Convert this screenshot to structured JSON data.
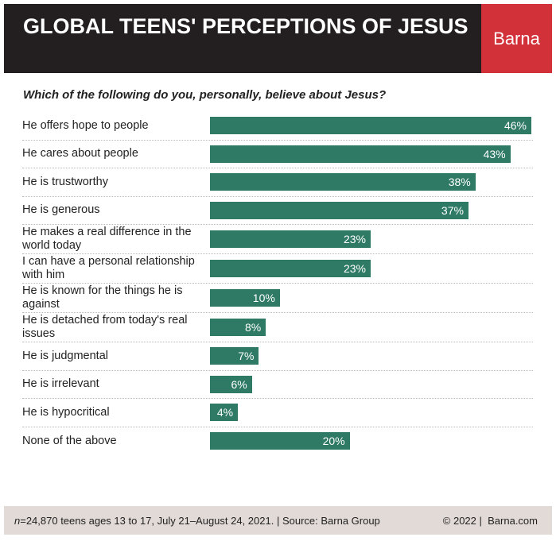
{
  "chart_data": {
    "type": "bar",
    "orientation": "horizontal",
    "title": "GLOBAL TEENS' PERCEPTIONS OF JESUS",
    "brand": "Barna",
    "subtitle": "Which of the following do you, personally, believe about Jesus?",
    "categories": [
      "He offers hope to people",
      "He cares about people",
      "He is trustworthy",
      "He is generous",
      "He makes a real difference in the world today",
      "I can have a personal relationship with him",
      "He is known for the things he is against",
      "He is detached from today's real issues",
      "He is judgmental",
      "He is irrelevant",
      "He is hypocritical",
      "None of the above"
    ],
    "values": [
      46,
      43,
      38,
      37,
      23,
      23,
      10,
      8,
      7,
      6,
      4,
      20
    ],
    "value_labels": [
      "46%",
      "43%",
      "38%",
      "37%",
      "23%",
      "23%",
      "10%",
      "8%",
      "7%",
      "6%",
      "4%",
      "20%"
    ],
    "color": "#2f7a64",
    "footer": {
      "note_var": "n",
      "note": "=24,870 teens ages 13 to 17, July 21–August 24, 2021. | Source: Barna Group",
      "copyright": "© 2022 |",
      "site": "Barna.com"
    }
  }
}
